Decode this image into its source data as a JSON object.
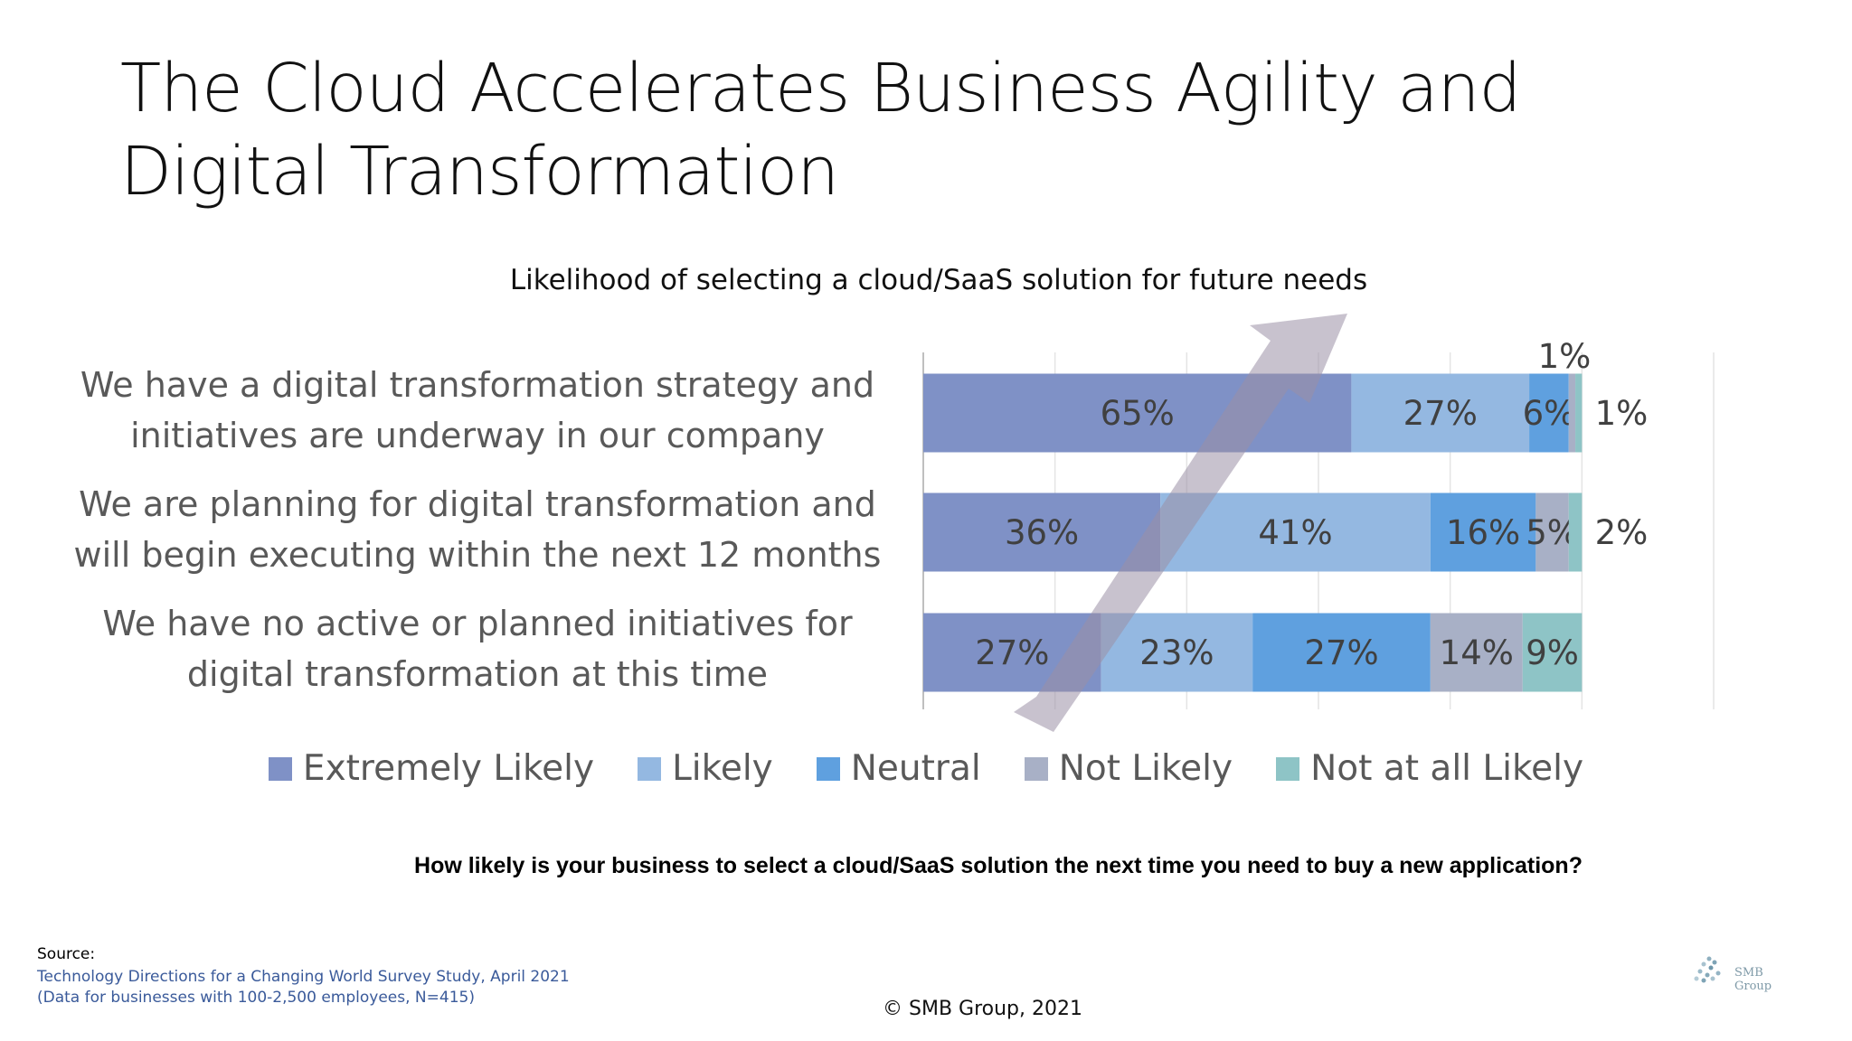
{
  "slide": {
    "title": "The Cloud Accelerates Business Agility and Digital Transformation",
    "question": "How likely is your business to select a cloud/SaaS solution the next time you need to buy a new application?",
    "source_label": "Source:",
    "source_lines": [
      "Technology Directions for a Changing World Survey Study, April 2021",
      "(Data for businesses with 100-2,500 employees, N=415)"
    ],
    "copyright": "© SMB Group, 2021",
    "logo_text": "SMB Group"
  },
  "chart_data": {
    "type": "bar",
    "orientation": "horizontal",
    "stacked": true,
    "title": "Likelihood of selecting a cloud/SaaS solution for future needs",
    "xlim": [
      0,
      120
    ],
    "grid": true,
    "legend_position": "bottom",
    "categories": [
      "We have a digital transformation strategy and initiatives are underway in our company",
      "We are planning for digital transformation and will begin executing within the next 12 months",
      "We have no active or planned initiatives for digital transformation at this time"
    ],
    "category_lines": [
      [
        "We have a digital transformation strategy and",
        "initiatives are underway in our company"
      ],
      [
        "We are planning for digital transformation and",
        "will begin executing within the next 12 months"
      ],
      [
        "We have no active or planned initiatives for",
        "digital transformation at this time"
      ]
    ],
    "series": [
      {
        "name": "Extremely Likely",
        "color": "#7f91c6",
        "values": [
          65,
          36,
          27
        ],
        "labels": [
          "65%",
          "36%",
          "27%"
        ]
      },
      {
        "name": "Likely",
        "color": "#94b8e1",
        "values": [
          27,
          41,
          23
        ],
        "labels": [
          "27%",
          "41%",
          "23%"
        ]
      },
      {
        "name": "Neutral",
        "color": "#5fa0df",
        "values": [
          6,
          16,
          27
        ],
        "labels": [
          "6%",
          "16%",
          "27%"
        ]
      },
      {
        "name": "Not Likely",
        "color": "#a8b0c6",
        "values": [
          1,
          5,
          14
        ],
        "labels": [
          "",
          "5%",
          "14%"
        ]
      },
      {
        "name": "Not at all Likely",
        "color": "#8ec4c6",
        "values": [
          1,
          2,
          9
        ],
        "labels": [
          "",
          "",
          "9%"
        ]
      }
    ],
    "outside_labels": [
      {
        "row": 0,
        "text": "1%",
        "position": "above"
      },
      {
        "row": 0,
        "text": "1%",
        "position": "right"
      },
      {
        "row": 1,
        "text": "2%",
        "position": "right"
      }
    ],
    "annotation": "diagonal arrow pointing up-right"
  }
}
